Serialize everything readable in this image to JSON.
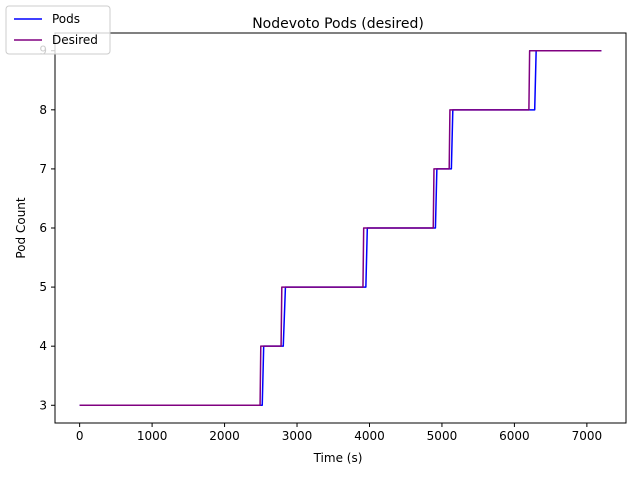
{
  "chart_data": {
    "type": "line",
    "title": "Nodevoto Pods (desired)",
    "xlabel": "Time (s)",
    "ylabel": "Pod Count",
    "xlim": [
      -340,
      7540
    ],
    "ylim": [
      2.7,
      9.3
    ],
    "xticks": [
      0,
      1000,
      2000,
      3000,
      4000,
      5000,
      6000,
      7000
    ],
    "yticks": [
      3,
      4,
      5,
      6,
      7,
      8,
      9
    ],
    "grid": false,
    "legend_position": "top-left",
    "series": [
      {
        "name": "Pods",
        "color": "#0000ff",
        "x": [
          0,
          2520,
          2540,
          2810,
          2840,
          3950,
          3970,
          4910,
          4930,
          5130,
          5150,
          6280,
          6300,
          7200
        ],
        "y": [
          3,
          3,
          4,
          4,
          5,
          5,
          6,
          6,
          7,
          7,
          8,
          8,
          9,
          9
        ]
      },
      {
        "name": "Desired",
        "color": "#800080",
        "x": [
          0,
          2490,
          2500,
          2780,
          2790,
          3910,
          3920,
          4880,
          4890,
          5100,
          5110,
          6200,
          6210,
          7200
        ],
        "y": [
          3,
          3,
          4,
          4,
          5,
          5,
          6,
          6,
          7,
          7,
          8,
          8,
          9,
          9
        ]
      }
    ]
  }
}
